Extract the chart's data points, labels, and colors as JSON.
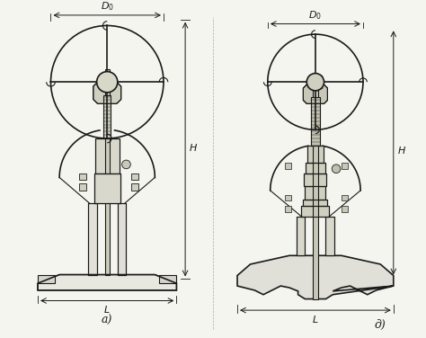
{
  "title": "",
  "bg_color": "#f5f5f0",
  "line_color": "#1a1a1a",
  "hatch_color": "#2a2a2a",
  "dim_color": "#111111",
  "label_a": "a)",
  "label_d": "д)",
  "label_D0": "D₀",
  "label_H": "H",
  "label_L": "L",
  "fig_width": 4.74,
  "fig_height": 3.76,
  "dpi": 100
}
